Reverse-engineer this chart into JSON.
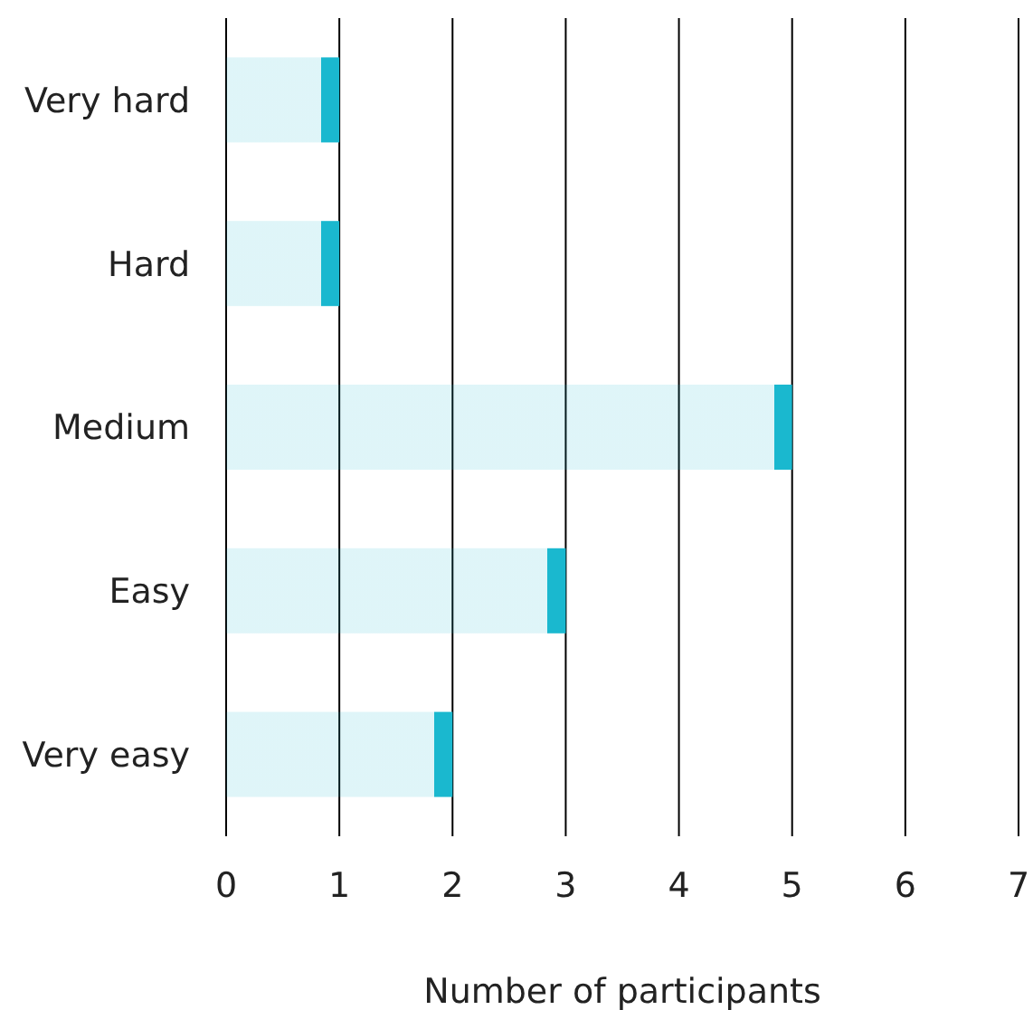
{
  "chart_data": {
    "type": "bar",
    "orientation": "horizontal",
    "categories": [
      "Very hard",
      "Hard",
      "Medium",
      "Easy",
      "Very easy"
    ],
    "values": [
      1,
      1,
      5,
      3,
      2
    ],
    "color": "#1ab8cf",
    "xlim": [
      0,
      7
    ],
    "xticks": [
      0,
      1,
      2,
      3,
      4,
      5,
      6,
      7
    ],
    "xlabel": "Number of participants",
    "grid": "x"
  }
}
